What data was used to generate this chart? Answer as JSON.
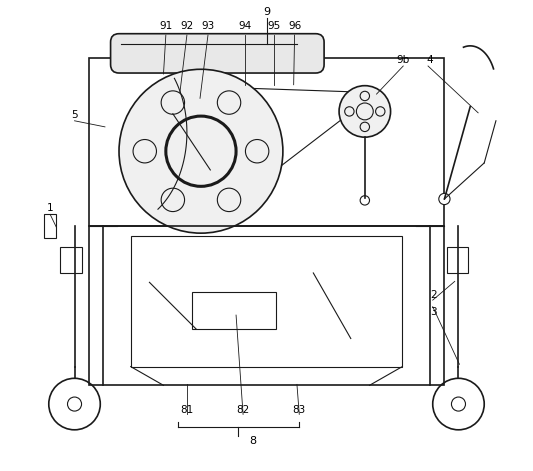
{
  "bg_color": "#ffffff",
  "line_color": "#1a1a1a",
  "label_color": "#000000",
  "fig_width": 5.33,
  "fig_height": 4.71,
  "dpi": 100
}
